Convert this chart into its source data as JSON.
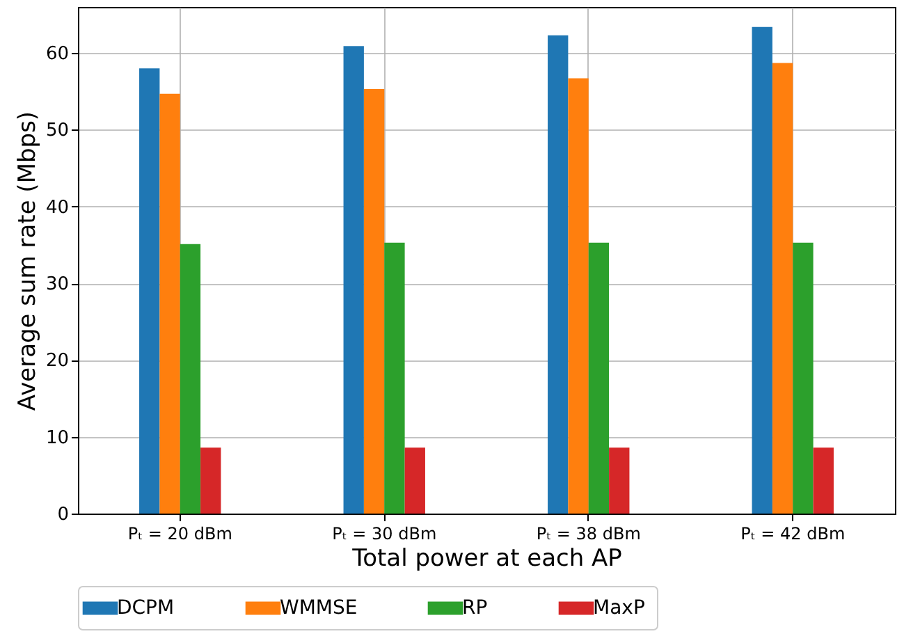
{
  "chart_data": {
    "type": "bar",
    "xlabel": "Total power at each AP",
    "ylabel": "Average sum rate (Mbps)",
    "categories": [
      "Pₜ = 20 dBm",
      "Pₜ = 30 dBm",
      "Pₜ = 38 dBm",
      "Pₜ = 42 dBm"
    ],
    "series": [
      {
        "name": "DCPM",
        "color": "#1f77b4",
        "values": [
          58.0,
          60.9,
          62.3,
          63.4
        ]
      },
      {
        "name": "WMMSE",
        "color": "#ff7f0e",
        "values": [
          54.7,
          55.3,
          56.7,
          58.7
        ]
      },
      {
        "name": "RP",
        "color": "#2ca02c",
        "values": [
          35.1,
          35.3,
          35.3,
          35.3
        ]
      },
      {
        "name": "MaxP",
        "color": "#d62728",
        "values": [
          8.6,
          8.6,
          8.6,
          8.6
        ]
      }
    ],
    "ylim": [
      0,
      66
    ],
    "yticks": [
      0,
      10,
      20,
      30,
      40,
      50,
      60
    ],
    "grid": true,
    "legend": "bottom"
  }
}
